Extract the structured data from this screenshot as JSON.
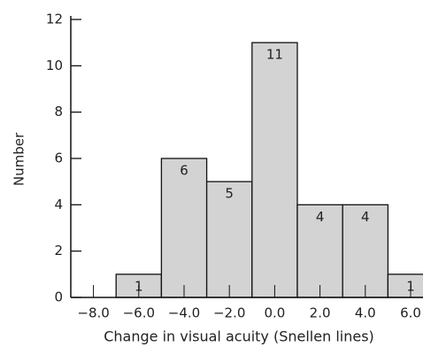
{
  "chart_data": {
    "type": "histogram",
    "xlabel": "Change in visual acuity (Snellen lines)",
    "ylabel": "Number",
    "bins": [
      -7,
      -5,
      -3,
      -1,
      1,
      3,
      5,
      7
    ],
    "counts": [
      1,
      6,
      5,
      11,
      4,
      4,
      1
    ],
    "color": "#d3d3d3",
    "xlim": [
      -9,
      7
    ],
    "ylim": [
      0,
      12
    ],
    "xticks": [
      {
        "value": -8,
        "label": "−8.0"
      },
      {
        "value": -6,
        "label": "−6.0"
      },
      {
        "value": -4,
        "label": "−4.0"
      },
      {
        "value": -2,
        "label": "−2.0"
      },
      {
        "value": 0,
        "label": "0.0"
      },
      {
        "value": 2,
        "label": "2.0"
      },
      {
        "value": 4,
        "label": "4.0"
      },
      {
        "value": 6,
        "label": "6.0"
      }
    ],
    "yticks": [
      0,
      2,
      4,
      6,
      8,
      10,
      12
    ]
  }
}
